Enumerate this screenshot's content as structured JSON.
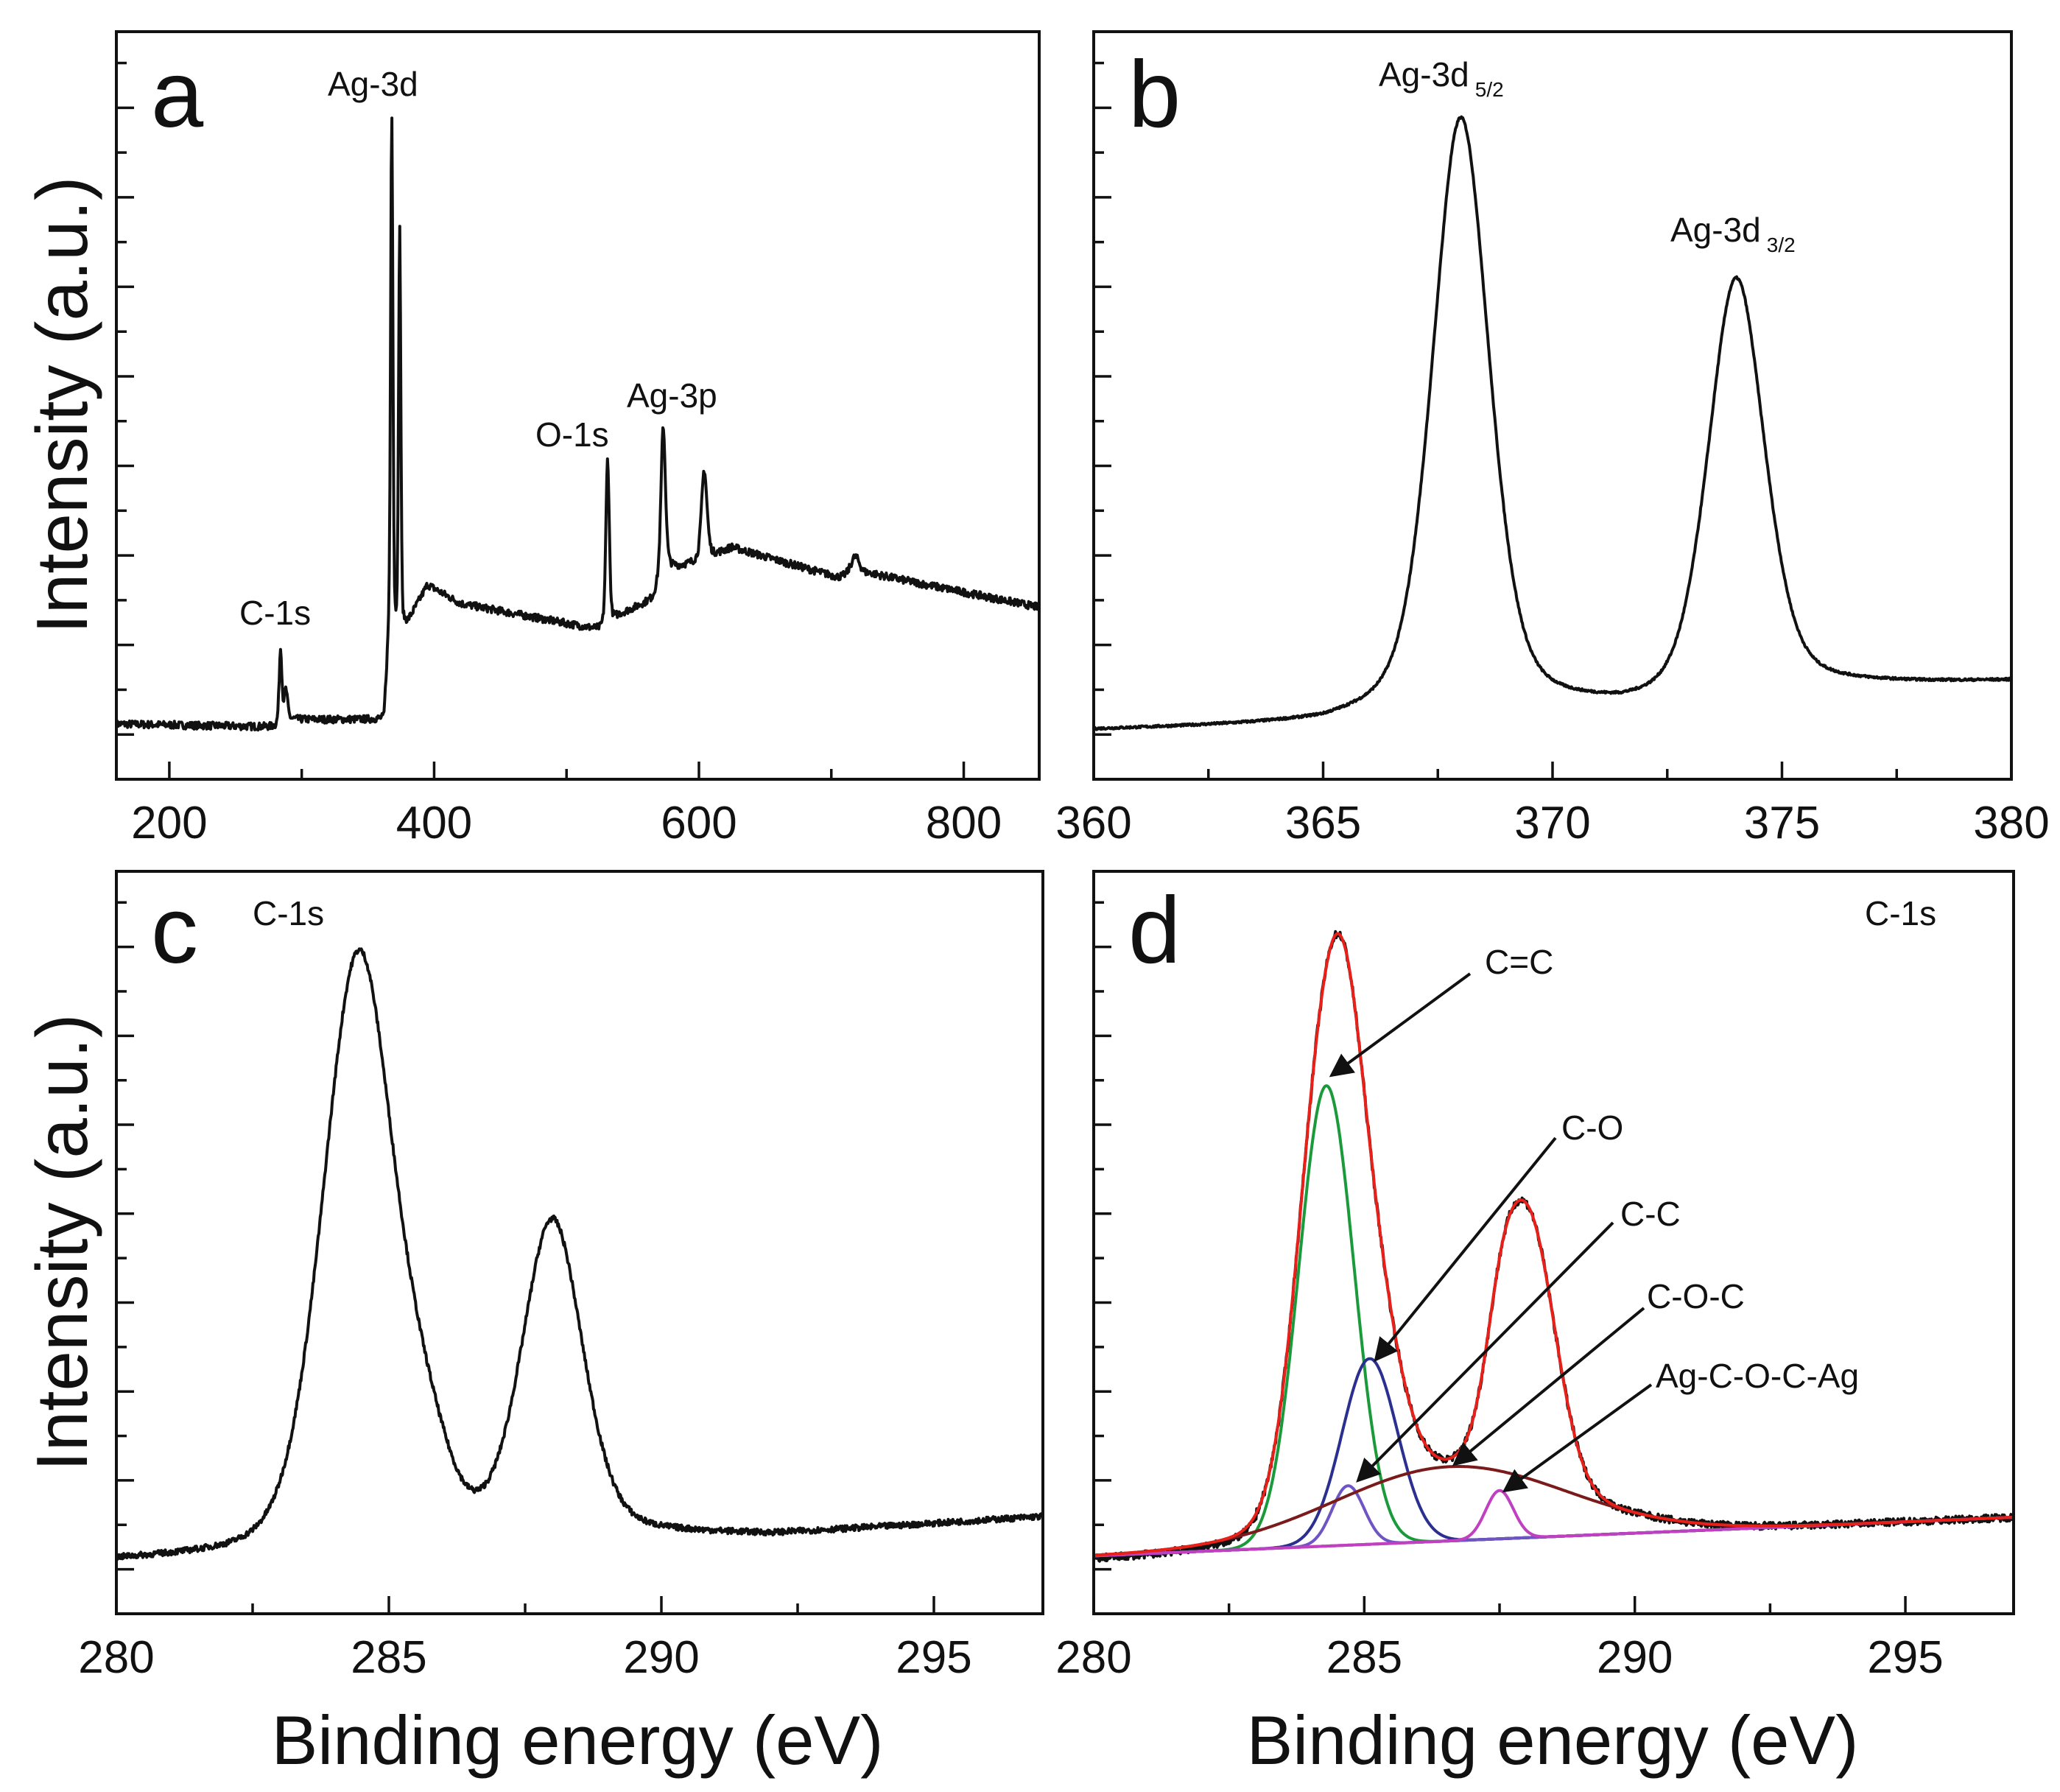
{
  "chart_data": [
    {
      "panel": "a",
      "type": "line",
      "xlabel": "",
      "ylabel": "Intensity (a.u.)",
      "xlim": [
        160,
        857
      ],
      "ylim": [
        0,
        1
      ],
      "x_ticks": [
        200,
        400,
        600,
        800
      ],
      "x_minor_step": 100,
      "grid": false,
      "annotations": [
        "C-1s",
        "Ag-3d",
        "O-1s",
        "Ag-3p"
      ],
      "background": [
        [
          160,
          0.074
        ],
        [
          280,
          0.07
        ],
        [
          290,
          0.08
        ],
        [
          362,
          0.08
        ],
        [
          366,
          0.2
        ],
        [
          380,
          0.21
        ],
        [
          395,
          0.26
        ],
        [
          420,
          0.235
        ],
        [
          525,
          0.2
        ],
        [
          540,
          0.22
        ],
        [
          565,
          0.24
        ],
        [
          575,
          0.28
        ],
        [
          600,
          0.29
        ],
        [
          625,
          0.31
        ],
        [
          705,
          0.27
        ],
        [
          730,
          0.275
        ],
        [
          857,
          0.23
        ]
      ],
      "peaks": [
        [
          284,
          0.1,
          2.5,
          0.3
        ],
        [
          288,
          0.04,
          3,
          0.3
        ],
        [
          368,
          0.69,
          2.0,
          0.2
        ],
        [
          374,
          0.53,
          2.0,
          0.2
        ],
        [
          531,
          0.22,
          3,
          0.3
        ],
        [
          573,
          0.2,
          4,
          0.4
        ],
        [
          604,
          0.12,
          5,
          0.4
        ],
        [
          718,
          0.025,
          8,
          0.4
        ]
      ],
      "noise": 0.005,
      "color": "#111111"
    },
    {
      "panel": "b",
      "type": "line",
      "xlim": [
        360,
        380
      ],
      "ylim": [
        0,
        1
      ],
      "x_ticks": [
        360,
        365,
        370,
        375,
        380
      ],
      "x_minor_step": 2.5,
      "annotations": [
        {
          "main": "Ag-3d",
          "sub": "5/2"
        },
        {
          "main": "Ag-3d",
          "sub": "3/2"
        }
      ],
      "background": [
        [
          360,
          0.065
        ],
        [
          365,
          0.072
        ],
        [
          366.5,
          0.085
        ],
        [
          368.5,
          0.095
        ],
        [
          371.5,
          0.09
        ],
        [
          373.5,
          0.1
        ],
        [
          375,
          0.12
        ],
        [
          380,
          0.13
        ]
      ],
      "peaks": [
        [
          368.0,
          0.79,
          1.45,
          0.35
        ],
        [
          374.0,
          0.56,
          1.45,
          0.35
        ]
      ],
      "noise": 0.0015,
      "color": "#111111"
    },
    {
      "panel": "c",
      "type": "line",
      "xlabel": "Binding energy (eV)",
      "ylabel": "Intensity (a.u.)",
      "xlim": [
        280,
        297
      ],
      "ylim": [
        0,
        1
      ],
      "x_ticks": [
        280,
        285,
        290,
        295
      ],
      "x_minor_step": 2.5,
      "annotations": [
        "C-1s"
      ],
      "background": [
        [
          280,
          0.07
        ],
        [
          282,
          0.075
        ],
        [
          283,
          0.08
        ],
        [
          286,
          0.1
        ],
        [
          289,
          0.105
        ],
        [
          292,
          0.105
        ],
        [
          297,
          0.13
        ]
      ],
      "peaks": [
        [
          284.45,
          0.8,
          1.55,
          0.25
        ],
        [
          285.7,
          0.08,
          1.0,
          0
        ],
        [
          288.0,
          0.42,
          1.3,
          0.25
        ]
      ],
      "noise": 0.004,
      "color": "#111111"
    },
    {
      "panel": "d",
      "type": "line",
      "xlabel": "Binding energy (eV)",
      "xlim": [
        280,
        297
      ],
      "ylim": [
        0,
        1
      ],
      "x_ticks": [
        280,
        285,
        290,
        295
      ],
      "x_minor_step": 2.5,
      "title_label": "C-1s",
      "baseline": [
        [
          280,
          0.078
        ],
        [
          297,
          0.13
        ]
      ],
      "components": [
        {
          "name": "C=C",
          "center": 284.3,
          "height": 0.62,
          "fwhm": 1.2,
          "color": "#1a9a3a"
        },
        {
          "name": "C-O",
          "center": 285.1,
          "height": 0.25,
          "fwhm": 1.2,
          "color": "#2b2f8f"
        },
        {
          "name": "C-C",
          "center": 284.7,
          "height": 0.08,
          "fwhm": 0.7,
          "color": "#6f55c4"
        },
        {
          "name": "C-O-C",
          "center": 286.6,
          "height": 0.1,
          "fwhm": 5.0,
          "color": "#7a1a1a"
        },
        {
          "name": "Ag-C-O-C-Ag",
          "center": 287.5,
          "height": 0.065,
          "fwhm": 0.6,
          "color": "#c040c0"
        }
      ],
      "envelope_extra_peaks": [
        [
          288.0,
          0.36,
          1.2
        ]
      ],
      "envelope_color": "#e8201a",
      "raw_color": "#111111",
      "noise": 0.005
    }
  ]
}
